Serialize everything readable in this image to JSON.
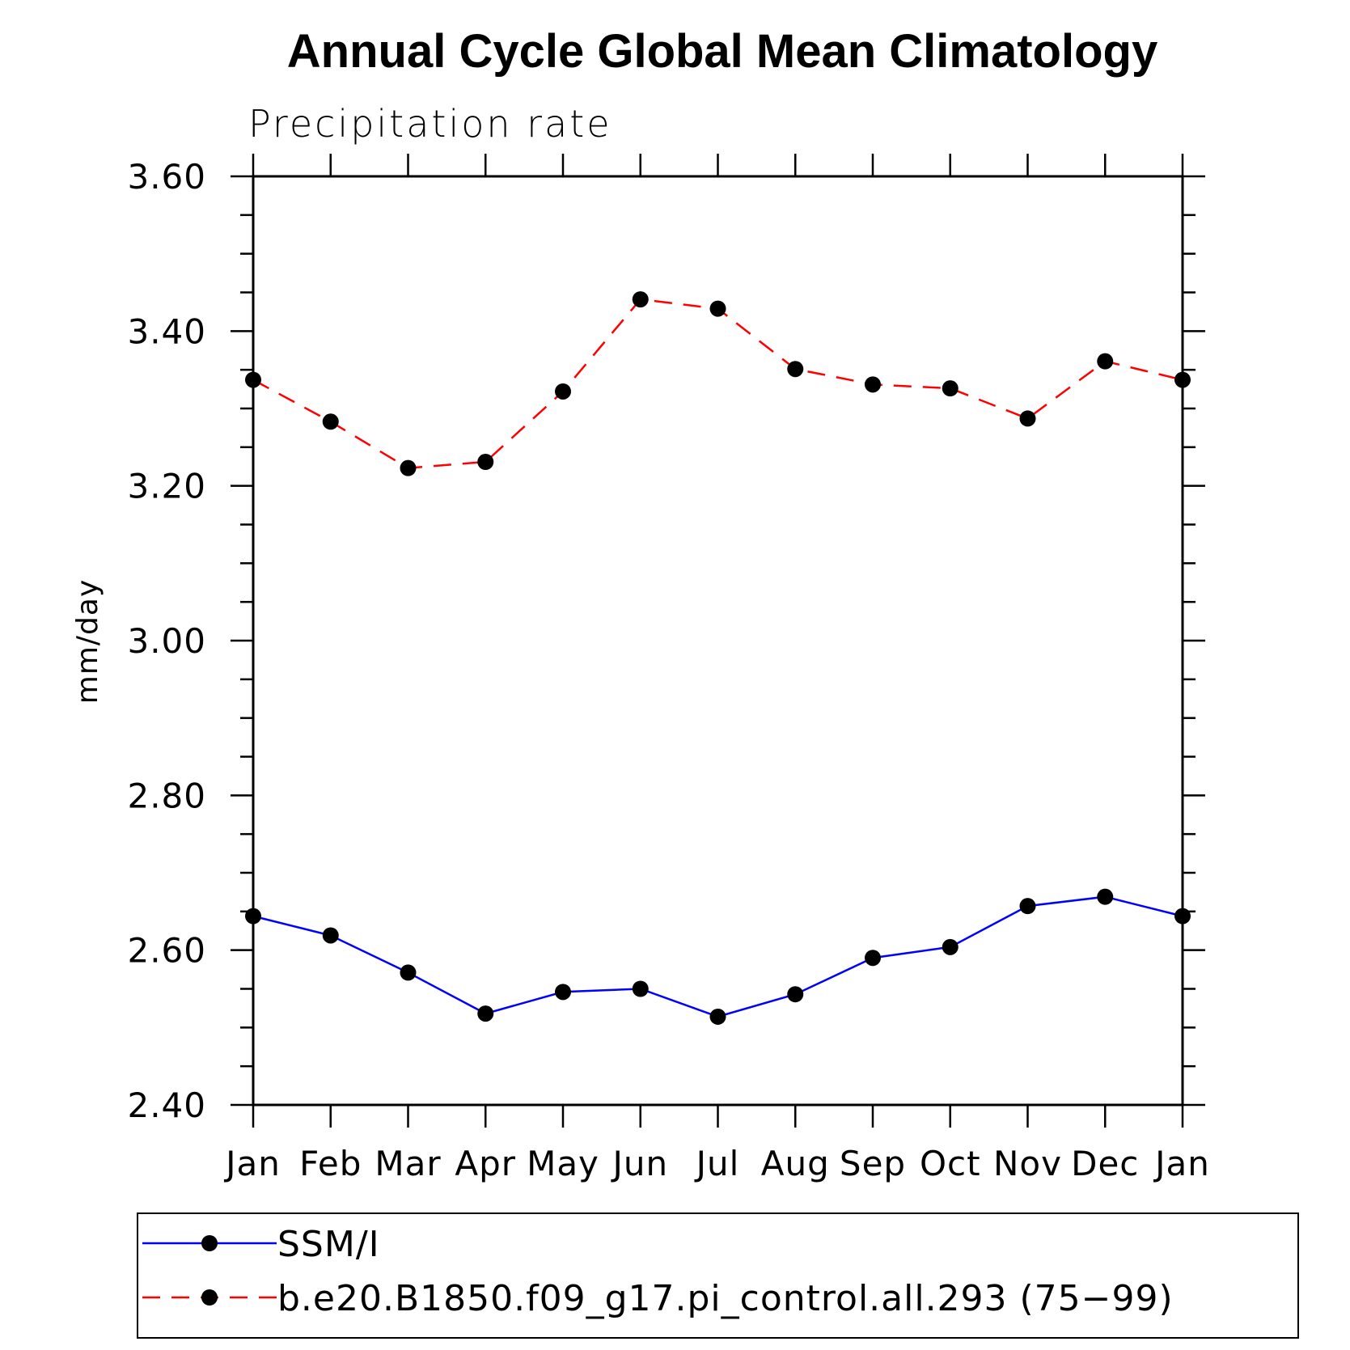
{
  "chart_data": {
    "type": "line",
    "title": "Annual Cycle Global Mean Climatology",
    "subtitle": "Precipitation rate",
    "xlabel": "",
    "ylabel": "mm/day",
    "categories": [
      "Jan",
      "Feb",
      "Mar",
      "Apr",
      "May",
      "Jun",
      "Jul",
      "Aug",
      "Sep",
      "Oct",
      "Nov",
      "Dec",
      "Jan"
    ],
    "ylim": [
      2.4,
      3.6
    ],
    "yticks": [
      "2.40",
      "2.60",
      "2.80",
      "3.00",
      "3.20",
      "3.40",
      "3.60"
    ],
    "grid": false,
    "legend_position": "bottom",
    "series": [
      {
        "name": "SSM/I",
        "color": "#0000ff",
        "line_style": "solid",
        "marker": "filled-circle",
        "values": [
          2.644,
          2.619,
          2.571,
          2.518,
          2.546,
          2.55,
          2.514,
          2.543,
          2.59,
          2.604,
          2.657,
          2.669,
          2.644
        ]
      },
      {
        "name": "b.e20.B1850.f09_g17.pi_control.all.293 (75−99)",
        "color": "#ff0000",
        "line_style": "dashed",
        "marker": "filled-circle",
        "values": [
          3.337,
          3.283,
          3.223,
          3.231,
          3.322,
          3.441,
          3.429,
          3.351,
          3.331,
          3.326,
          3.287,
          3.361,
          3.337
        ]
      }
    ]
  }
}
